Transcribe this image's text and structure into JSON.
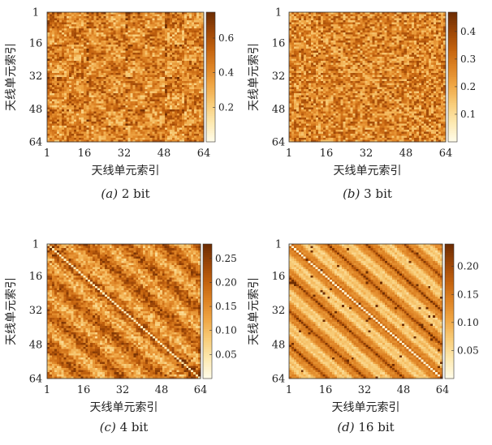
{
  "chart_data": [
    {
      "type": "heatmap",
      "caption": "(a)  2 bit",
      "caption_letter": "a",
      "caption_text": "2 bit",
      "ylabel": "天线单元索引",
      "xlabel": "天线单元索引",
      "x_ticks": [
        "1",
        "16",
        "32",
        "48",
        "64"
      ],
      "y_ticks": [
        "1",
        "16",
        "32",
        "48",
        "64"
      ],
      "grid_size": 64,
      "colorbar_range": [
        0,
        0.75
      ],
      "colorbar_ticks": [
        "0.6",
        "0.4",
        "0.2"
      ],
      "colorbar_tick_values": [
        0.6,
        0.4,
        0.2
      ],
      "pattern": "checker-blocks-16"
    },
    {
      "type": "heatmap",
      "caption": "(b)  3 bit",
      "caption_letter": "b",
      "caption_text": "3 bit",
      "ylabel": "天线单元索引",
      "xlabel": "天线单元索引",
      "x_ticks": [
        "1",
        "16",
        "32",
        "48",
        "64"
      ],
      "y_ticks": [
        "1",
        "16",
        "32",
        "48",
        "64"
      ],
      "grid_size": 64,
      "colorbar_range": [
        0,
        0.47
      ],
      "colorbar_ticks": [
        "0.4",
        "0.3",
        "0.2",
        "0.1"
      ],
      "colorbar_tick_values": [
        0.4,
        0.3,
        0.2,
        0.1
      ],
      "pattern": "noise-fine"
    },
    {
      "type": "heatmap",
      "caption": "(c)  4 bit",
      "caption_letter": "c",
      "caption_text": "4 bit",
      "ylabel": "天线单元索引",
      "xlabel": "天线单元索引",
      "x_ticks": [
        "1",
        "16",
        "32",
        "48",
        "64"
      ],
      "y_ticks": [
        "1",
        "16",
        "32",
        "48",
        "64"
      ],
      "grid_size": 64,
      "colorbar_range": [
        0,
        0.28
      ],
      "colorbar_ticks": [
        "0.25",
        "0.20",
        "0.15",
        "0.10",
        "0.05"
      ],
      "colorbar_tick_values": [
        0.25,
        0.2,
        0.15,
        0.1,
        0.05
      ],
      "pattern": "diagonal-bands-noisy"
    },
    {
      "type": "heatmap",
      "caption": "(d)  16 bit",
      "caption_letter": "d",
      "caption_text": "16 bit",
      "ylabel": "天线单元索引",
      "xlabel": "天线单元索引",
      "x_ticks": [
        "1",
        "16",
        "32",
        "48",
        "64"
      ],
      "y_ticks": [
        "1",
        "16",
        "32",
        "48",
        "64"
      ],
      "grid_size": 64,
      "colorbar_range": [
        0,
        0.24
      ],
      "colorbar_ticks": [
        "0.20",
        "0.15",
        "0.10",
        "0.05"
      ],
      "colorbar_tick_values": [
        0.2,
        0.15,
        0.1,
        0.05
      ],
      "pattern": "diagonal-bands-smooth"
    }
  ],
  "colormap": [
    "#fffbe6",
    "#fde9b0",
    "#f8cd7a",
    "#f0a847",
    "#df8526",
    "#c4630f",
    "#9c4607",
    "#6e2d03"
  ]
}
